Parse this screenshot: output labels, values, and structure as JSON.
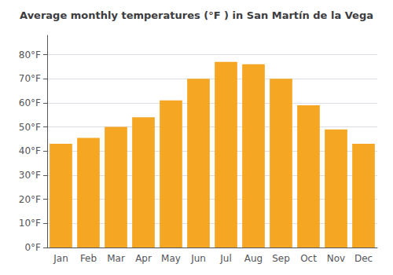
{
  "chart_data": {
    "type": "bar",
    "title": "Average monthly temperatures (°F ) in San Martín de la Vega",
    "categories": [
      "Jan",
      "Feb",
      "Mar",
      "Apr",
      "May",
      "Jun",
      "Jul",
      "Aug",
      "Sep",
      "Oct",
      "Nov",
      "Dec"
    ],
    "values": [
      43,
      45.5,
      50,
      54,
      61,
      70,
      77,
      76,
      70,
      59,
      49,
      43
    ],
    "color": "#F5A623",
    "ylim": [
      0,
      88
    ],
    "yticks": [
      {
        "value": 0,
        "label": "0°F"
      },
      {
        "value": 10,
        "label": "10°F"
      },
      {
        "value": 20,
        "label": "20°F"
      },
      {
        "value": 30,
        "label": "30°F"
      },
      {
        "value": 40,
        "label": "40°F"
      },
      {
        "value": 50,
        "label": "50°F"
      },
      {
        "value": 60,
        "label": "60°F"
      },
      {
        "value": 70,
        "label": "70°F"
      },
      {
        "value": 80,
        "label": "80°F"
      }
    ],
    "grid": true
  }
}
